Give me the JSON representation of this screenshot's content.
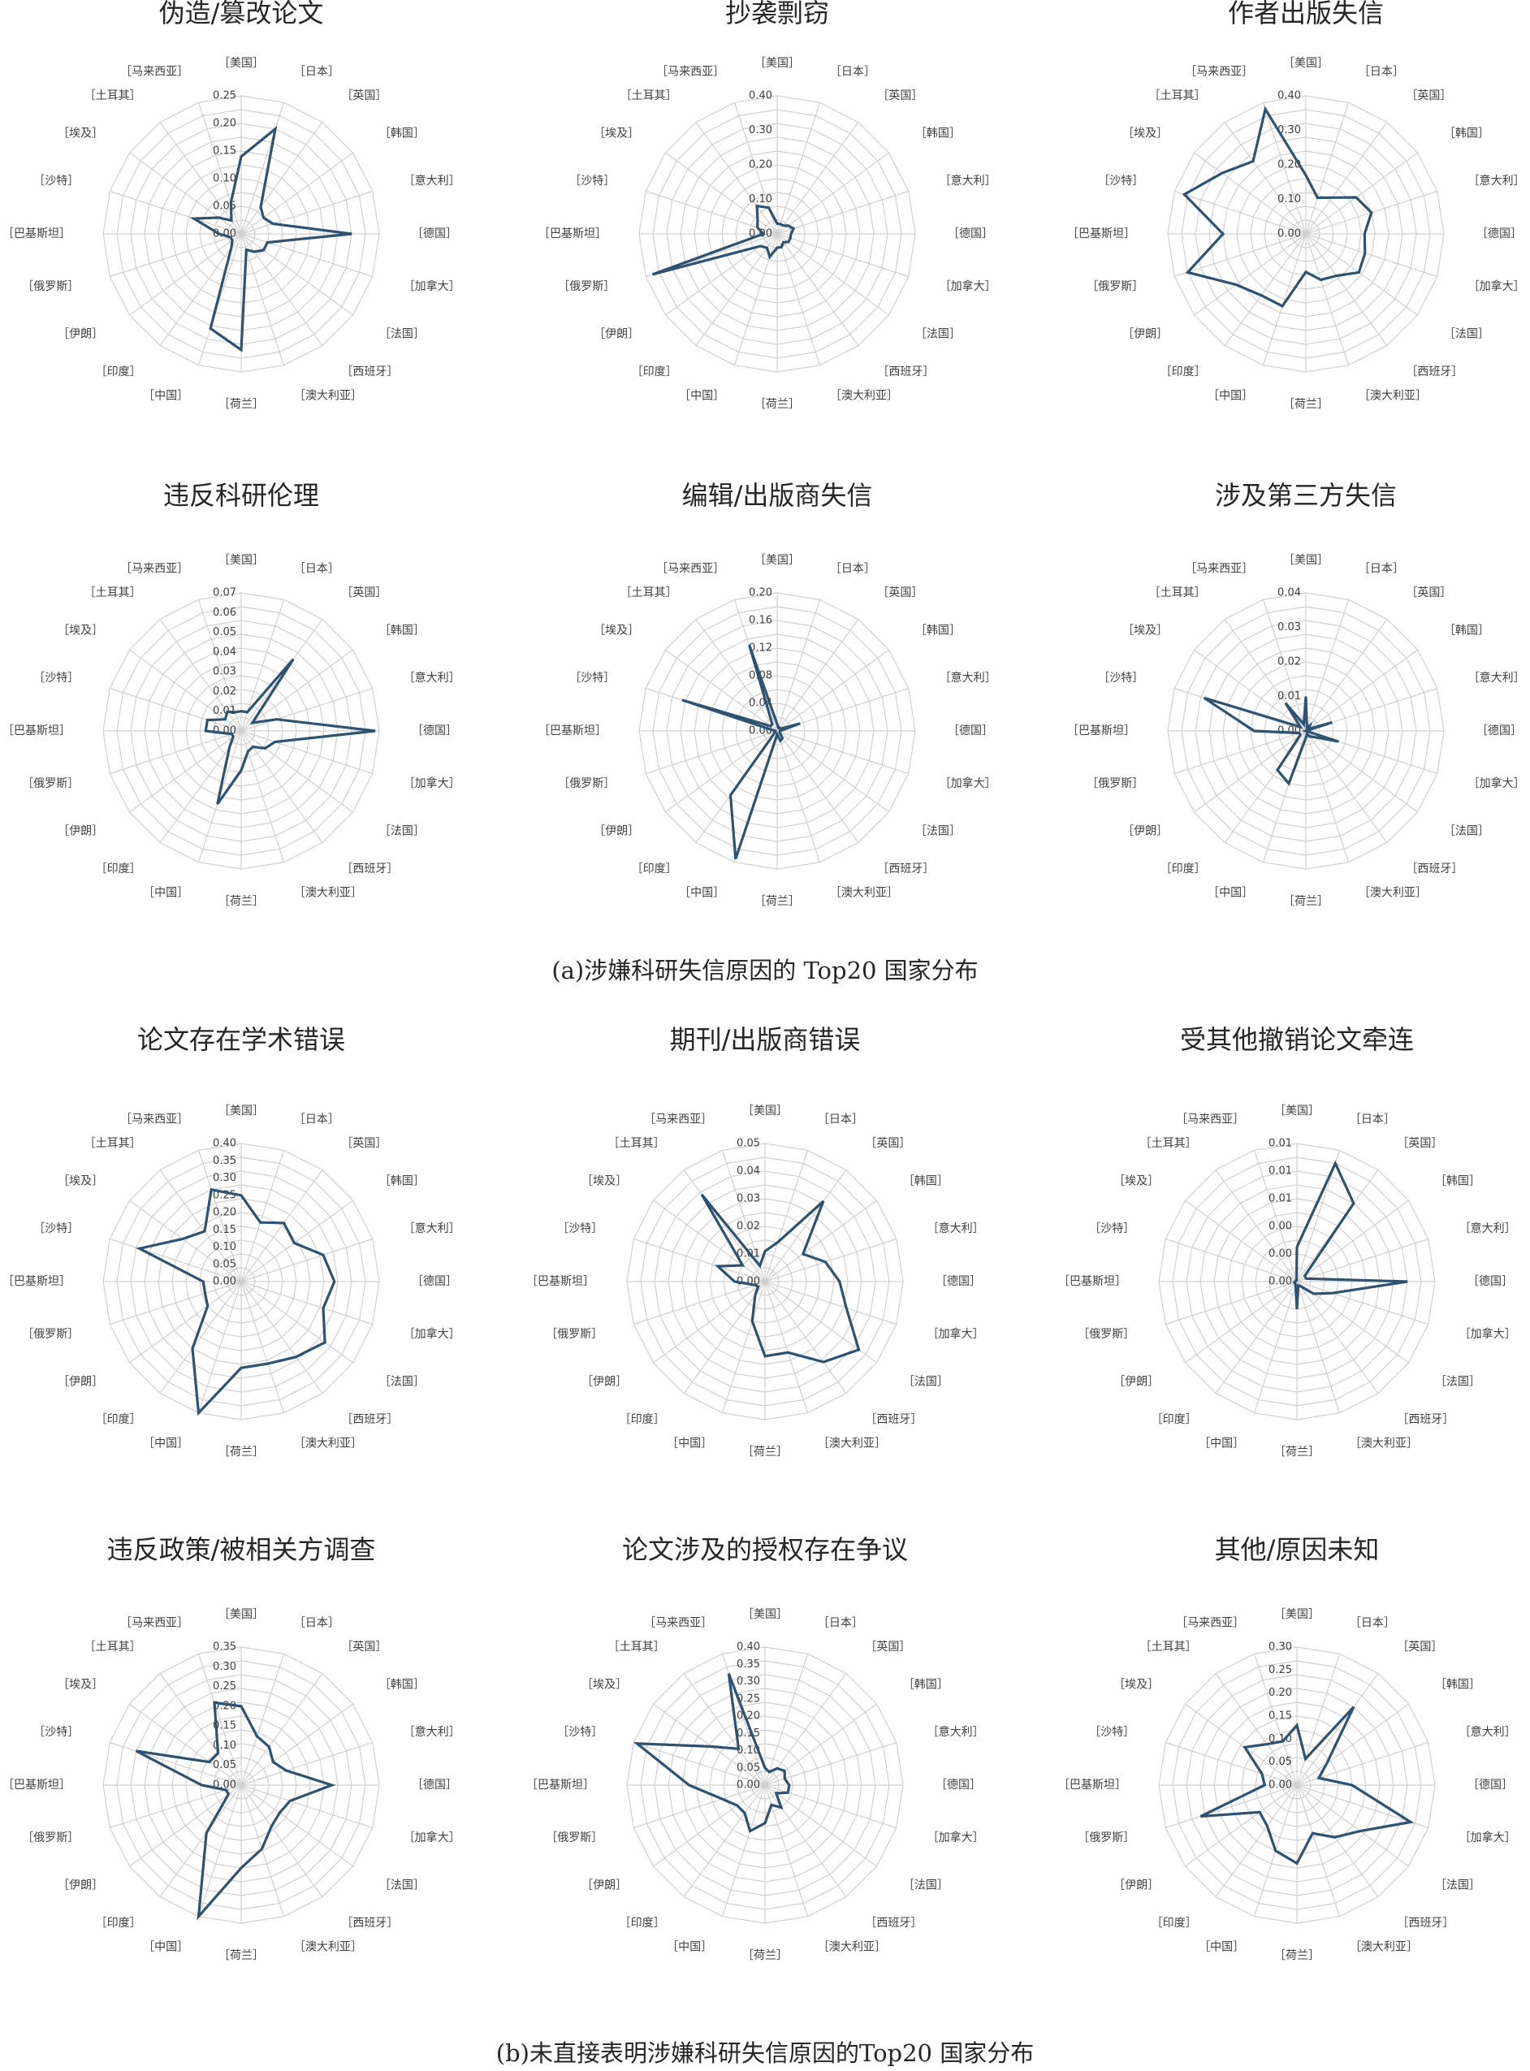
{
  "captions": {
    "a": "(a)涉嫌科研失信原因的 Top20 国家分布",
    "b": "(b)未直接表明涉嫌科研失信原因的Top20 国家分布"
  },
  "colors": {
    "series": "#2e5270",
    "grid": "#d0d0d0",
    "text": "#262626"
  },
  "chart_data": [
    {
      "type": "radar",
      "title": "伪造/篡改论文",
      "categories": [
        "［美国］",
        "［日本］",
        "［英国］",
        "［韩国］",
        "［意大利］",
        "［德国］",
        "［加拿大］",
        "［法国］",
        "［西班牙］",
        "［澳大利亚］",
        "［荷兰］",
        "［中国］",
        "［印度］",
        "［伊朗］",
        "［俄罗斯］",
        "［巴基斯坦］",
        "［沙特］",
        "［埃及］",
        "［土耳其］",
        "［马来西亚］"
      ],
      "ticks": [
        "0.00",
        "0.05",
        "0.10",
        "0.15",
        "0.20",
        "0.25"
      ],
      "rmax": 0.25,
      "values": [
        0.14,
        0.2,
        0.06,
        0.05,
        0.06,
        0.2,
        0.05,
        0.05,
        0.04,
        0.03,
        0.21,
        0.18,
        0.03,
        0.02,
        0.02,
        0.04,
        0.09,
        0.05,
        0.03,
        0.06
      ]
    },
    {
      "type": "radar",
      "title": "抄袭剽窃",
      "categories": [
        "［美国］",
        "［日本］",
        "［英国］",
        "［韩国］",
        "［意大利］",
        "［德国］",
        "［加拿大］",
        "［法国］",
        "［西班牙］",
        "［澳大利亚］",
        "［荷兰］",
        "［中国］",
        "［印度］",
        "［伊朗］",
        "［俄罗斯］",
        "［巴基斯坦］",
        "［沙特］",
        "［埃及］",
        "［土耳其］",
        "［马来西亚］"
      ],
      "ticks": [
        "0.00",
        "0.10",
        "0.20",
        "0.30",
        "0.40"
      ],
      "rmax": 0.4,
      "values": [
        0.03,
        0.03,
        0.03,
        0.04,
        0.05,
        0.04,
        0.04,
        0.04,
        0.03,
        0.04,
        0.04,
        0.07,
        0.05,
        0.06,
        0.38,
        0.04,
        0.06,
        0.07,
        0.1,
        0.08
      ]
    },
    {
      "type": "radar",
      "title": "作者出版失信",
      "categories": [
        "［美国］",
        "［日本］",
        "［英国］",
        "［韩国］",
        "［意大利］",
        "［德国］",
        "［加拿大］",
        "［法国］",
        "［西班牙］",
        "［澳大利亚］",
        "［荷兰］",
        "［中国］",
        "［印度］",
        "［伊朗］",
        "［俄罗斯］",
        "［巴基斯坦］",
        "［沙特］",
        "［埃及］",
        "［土耳其］",
        "［马来西亚］"
      ],
      "ticks": [
        "0.00",
        "0.10",
        "0.20",
        "0.30",
        "0.40"
      ],
      "rmax": 0.4,
      "values": [
        0.17,
        0.11,
        0.13,
        0.18,
        0.2,
        0.17,
        0.18,
        0.19,
        0.15,
        0.14,
        0.11,
        0.22,
        0.22,
        0.25,
        0.36,
        0.24,
        0.37,
        0.3,
        0.26,
        0.38
      ]
    },
    {
      "type": "radar",
      "title": "违反科研伦理",
      "categories": [
        "［美国］",
        "［日本］",
        "［英国］",
        "［韩国］",
        "［意大利］",
        "［德国］",
        "［加拿大］",
        "［法国］",
        "［西班牙］",
        "［澳大利亚］",
        "［荷兰］",
        "［中国］",
        "［印度］",
        "［伊朗］",
        "［俄罗斯］",
        "［巴基斯坦］",
        "［沙特］",
        "［埃及］",
        "［土耳其］",
        "［马来西亚］"
      ],
      "ticks": [
        "0.00",
        "0.01",
        "0.02",
        "0.03",
        "0.04",
        "0.05",
        "0.06",
        "0.07"
      ],
      "rmax": 0.07,
      "values": [
        0.01,
        0.01,
        0.045,
        0.007,
        0.019,
        0.068,
        0.018,
        0.015,
        0.01,
        0.011,
        0.02,
        0.039,
        0.01,
        0.005,
        0.005,
        0.018,
        0.018,
        0.01,
        0.012,
        0.01
      ]
    },
    {
      "type": "radar",
      "title": "编辑/出版商失信",
      "categories": [
        "［美国］",
        "［日本］",
        "［英国］",
        "［韩国］",
        "［意大利］",
        "［德国］",
        "［加拿大］",
        "［法国］",
        "［西班牙］",
        "［澳大利亚］",
        "［荷兰］",
        "［中国］",
        "［印度］",
        "［伊朗］",
        "［俄罗斯］",
        "［巴基斯坦］",
        "［沙特］",
        "［埃及］",
        "［土耳其］",
        "［马来西亚］"
      ],
      "ticks": [
        "0.00",
        "0.04",
        "0.08",
        "0.12",
        "0.16",
        "0.20"
      ],
      "rmax": 0.2,
      "values": [
        0.01,
        0.005,
        0.006,
        0.005,
        0.035,
        0.004,
        0.004,
        0.005,
        0.013,
        0.015,
        0.005,
        0.195,
        0.115,
        0.004,
        0.004,
        0.003,
        0.145,
        0.012,
        0.012,
        0.131
      ]
    },
    {
      "type": "radar",
      "title": "涉及第三方失信",
      "categories": [
        "［美国］",
        "［日本］",
        "［英国］",
        "［韩国］",
        "［意大利］",
        "［德国］",
        "［加拿大］",
        "［法国］",
        "［西班牙］",
        "［澳大利亚］",
        "［荷兰］",
        "［中国］",
        "［印度］",
        "［伊朗］",
        "［俄罗斯］",
        "［巴基斯坦］",
        "［沙特］",
        "［埃及］",
        "［土耳其］",
        "［马来西亚］"
      ],
      "ticks": [
        "0.00",
        "0.01",
        "0.02",
        "0.03",
        "0.04"
      ],
      "rmax": 0.04,
      "values": [
        0.01,
        0.001,
        0.002,
        0.001,
        0.008,
        0.0,
        0.01,
        0.003,
        0.002,
        0.001,
        0.002,
        0.016,
        0.014,
        0.002,
        0.002,
        0.015,
        0.031,
        0.002,
        0.01,
        0.002
      ]
    },
    {
      "type": "radar",
      "title": "论文存在学术错误",
      "categories": [
        "［美国］",
        "［日本］",
        "［英国］",
        "［韩国］",
        "［意大利］",
        "［德国］",
        "［加拿大］",
        "［法国］",
        "［西班牙］",
        "［澳大利亚］",
        "［荷兰］",
        "［中国］",
        "［印度］",
        "［伊朗］",
        "［俄罗斯］",
        "［巴基斯坦］",
        "［沙特］",
        "［埃及］",
        "［土耳其］",
        "［马来西亚］"
      ],
      "ticks": [
        "0.00",
        "0.05",
        "0.10",
        "0.15",
        "0.20",
        "0.25",
        "0.30",
        "0.35",
        "0.40"
      ],
      "rmax": 0.4,
      "values": [
        0.25,
        0.18,
        0.21,
        0.19,
        0.25,
        0.27,
        0.25,
        0.3,
        0.27,
        0.25,
        0.25,
        0.4,
        0.24,
        0.12,
        0.11,
        0.11,
        0.31,
        0.21,
        0.18,
        0.28
      ]
    },
    {
      "type": "radar",
      "title": "期刊/出版商错误",
      "categories": [
        "［美国］",
        "［日本］",
        "［英国］",
        "［韩国］",
        "［意大利］",
        "［德国］",
        "［加拿大］",
        "［法国］",
        "［西班牙］",
        "［澳大利亚］",
        "［荷兰］",
        "［中国］",
        "［印度］",
        "［伊朗］",
        "［俄罗斯］",
        "［巴基斯坦］",
        "［沙特］",
        "［埃及］",
        "［土耳其］",
        "［马来西亚］"
      ],
      "ticks": [
        "0.00",
        "0.01",
        "0.02",
        "0.03",
        "0.04",
        "0.05"
      ],
      "rmax": 0.05,
      "values": [
        0.011,
        0.015,
        0.036,
        0.017,
        0.023,
        0.027,
        0.031,
        0.042,
        0.036,
        0.027,
        0.027,
        0.015,
        0.006,
        0.003,
        0.004,
        0.011,
        0.018,
        0.01,
        0.039,
        0.006
      ]
    },
    {
      "type": "radar",
      "title": "受其他撤销论文牵连",
      "categories": [
        "［美国］",
        "［日本］",
        "［英国］",
        "［韩国］",
        "［意大利］",
        "［德国］",
        "［加拿大］",
        "［法国］",
        "［西班牙］",
        "［澳大利亚］",
        "［荷兰］",
        "［中国］",
        "［印度］",
        "［伊朗］",
        "［俄罗斯］",
        "［巴基斯坦］",
        "［沙特］",
        "［埃及］",
        "［土耳其］",
        "［马来西亚］"
      ],
      "ticks": [
        "0.00",
        "0.00",
        "0.00",
        "0.01",
        "0.01",
        "0.01"
      ],
      "rmax": 0.01,
      "values": [
        0.0025,
        0.009,
        0.007,
        0.0007,
        0.0007,
        0.008,
        0.0027,
        0.0015,
        0.0004,
        0.0003,
        0.002,
        0.0003,
        0.0002,
        0.0002,
        0.0002,
        0.0001,
        0.0001,
        0.0001,
        0.0001,
        0.0001
      ]
    },
    {
      "type": "radar",
      "title": "违反政策/被相关方调查",
      "categories": [
        "［美国］",
        "［日本］",
        "［英国］",
        "［韩国］",
        "［意大利］",
        "［德国］",
        "［加拿大］",
        "［法国］",
        "［西班牙］",
        "［澳大利亚］",
        "［荷兰］",
        "［中国］",
        "［印度］",
        "［伊朗］",
        "［俄罗斯］",
        "［巴基斯坦］",
        "［沙特］",
        "［埃及］",
        "［土耳其］",
        "［马来西亚］"
      ],
      "ticks": [
        "0.00",
        "0.05",
        "0.10",
        "0.15",
        "0.20",
        "0.25",
        "0.30",
        "0.35"
      ],
      "rmax": 0.35,
      "values": [
        0.2,
        0.13,
        0.12,
        0.1,
        0.12,
        0.23,
        0.13,
        0.12,
        0.13,
        0.17,
        0.21,
        0.35,
        0.15,
        0.04,
        0.04,
        0.1,
        0.28,
        0.1,
        0.1,
        0.22
      ]
    },
    {
      "type": "radar",
      "title": "论文涉及的授权存在争议",
      "categories": [
        "［美国］",
        "［日本］",
        "［英国］",
        "［韩国］",
        "［意大利］",
        "［德国］",
        "［加拿大］",
        "［法国］",
        "［西班牙］",
        "［澳大利亚］",
        "［荷兰］",
        "［中国］",
        "［印度］",
        "［伊朗］",
        "［俄罗斯］",
        "［巴基斯坦］",
        "［沙特］",
        "［埃及］",
        "［土耳其］",
        "［马来西亚］"
      ],
      "ticks": [
        "0.00",
        "0.05",
        "0.10",
        "0.15",
        "0.20",
        "0.25",
        "0.30",
        "0.35",
        "0.40"
      ],
      "rmax": 0.4,
      "values": [
        0.05,
        0.04,
        0.06,
        0.07,
        0.06,
        0.07,
        0.07,
        0.04,
        0.08,
        0.06,
        0.11,
        0.14,
        0.1,
        0.1,
        0.13,
        0.22,
        0.39,
        0.19,
        0.13,
        0.34
      ]
    },
    {
      "type": "radar",
      "title": "其他/原因未知",
      "categories": [
        "［美国］",
        "［日本］",
        "［英国］",
        "［韩国］",
        "［意大利］",
        "［德国］",
        "［加拿大］",
        "［法国］",
        "［西班牙］",
        "［澳大利亚］",
        "［荷兰］",
        "［中国］",
        "［印度］",
        "［伊朗］",
        "［俄罗斯］",
        "［巴基斯坦］",
        "［沙特］",
        "［埃及］",
        "［土耳其］",
        "［马来西亚］"
      ],
      "ticks": [
        "0.00",
        "0.05",
        "0.10",
        "0.15",
        "0.20",
        "0.25",
        "0.30"
      ],
      "rmax": 0.3,
      "values": [
        0.13,
        0.06,
        0.21,
        0.08,
        0.05,
        0.12,
        0.26,
        0.17,
        0.14,
        0.11,
        0.17,
        0.15,
        0.11,
        0.1,
        0.22,
        0.07,
        0.08,
        0.14,
        0.11,
        0.1
      ]
    }
  ]
}
